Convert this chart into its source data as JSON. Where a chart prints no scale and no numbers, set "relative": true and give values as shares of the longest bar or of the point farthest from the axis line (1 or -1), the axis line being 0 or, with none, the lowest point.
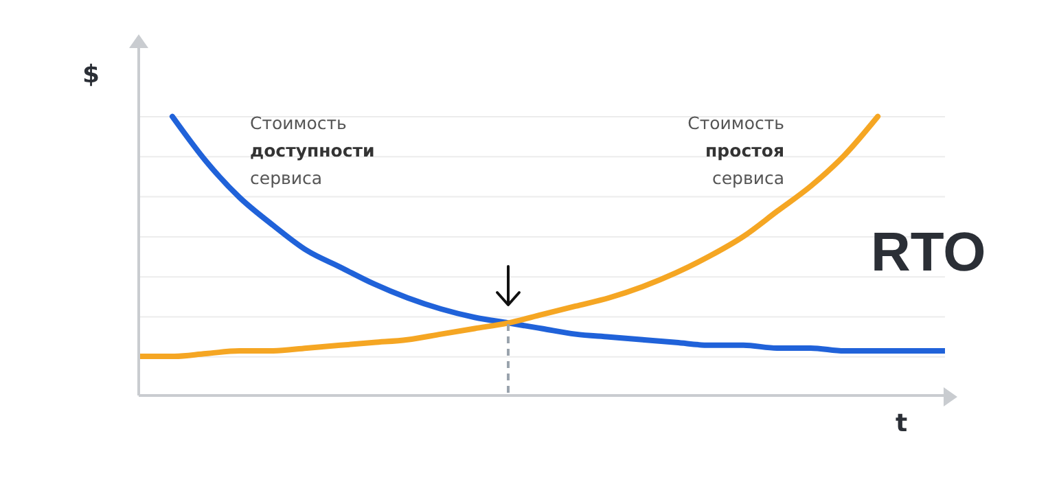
{
  "chart_data": {
    "type": "line",
    "relative": true,
    "xlabel": "t",
    "ylabel": "$",
    "grid": "y",
    "legend": false,
    "categories": [
      null,
      null,
      null,
      null,
      null,
      null,
      null,
      null,
      null,
      null,
      null,
      null,
      null,
      null,
      null,
      null,
      null,
      null,
      null,
      null,
      null,
      null,
      null,
      null,
      null
    ],
    "series": [
      {
        "name": "Стоимость доступности сервиса",
        "color": "#2062d9",
        "values": [
          null,
          1.0,
          0.84,
          0.71,
          0.61,
          0.52,
          0.46,
          0.4,
          0.35,
          0.31,
          0.28,
          0.26,
          0.24,
          0.22,
          0.21,
          0.2,
          0.19,
          0.18,
          0.18,
          0.17,
          0.17,
          0.16,
          0.16,
          0.16,
          0.16
        ]
      },
      {
        "name": "Стоимость простоя сервиса",
        "color": "#f5a623",
        "values": [
          0.14,
          0.14,
          0.15,
          0.16,
          0.16,
          0.17,
          0.18,
          0.19,
          0.2,
          0.22,
          0.24,
          0.26,
          0.29,
          0.32,
          0.35,
          0.39,
          0.44,
          0.5,
          0.57,
          0.66,
          0.75,
          0.86,
          1.0,
          null,
          null
        ]
      }
    ],
    "annotations": [
      "RTO"
    ]
  }
}
